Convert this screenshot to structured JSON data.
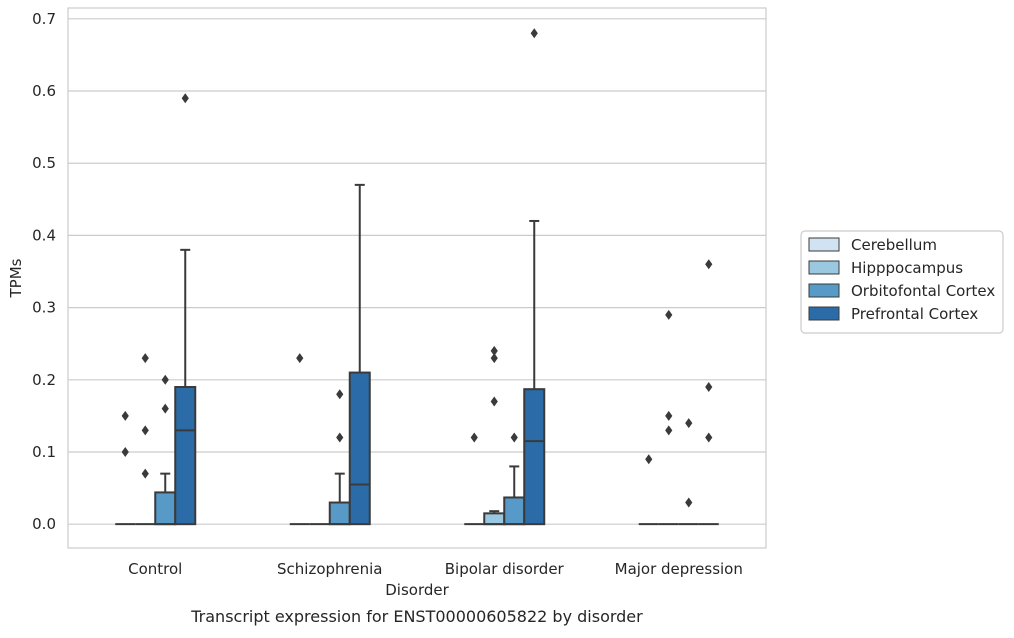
{
  "caption": "Transcript expression for ENST00000605822 by disorder",
  "chart_data": {
    "type": "box",
    "title": "",
    "xlabel": "Disorder",
    "ylabel": "TPMs",
    "ylim": [
      -0.033,
      0.715
    ],
    "yticks": [
      0.0,
      0.1,
      0.2,
      0.3,
      0.4,
      0.5,
      0.6,
      0.7
    ],
    "ytick_labels": [
      "0.0",
      "0.1",
      "0.2",
      "0.3",
      "0.4",
      "0.5",
      "0.6",
      "0.7"
    ],
    "grid": "horizontal",
    "legend_position": "right",
    "categories": [
      "Control",
      "Schizophrenia",
      "Bipolar disorder",
      "Major depression"
    ],
    "series": [
      {
        "name": "Cerebellum",
        "color": "#d1e2f2",
        "boxes": [
          {
            "q1": 0,
            "median": 0,
            "q3": 0,
            "whisker_low": 0,
            "whisker_high": 0,
            "outliers": [
              0.1,
              0.15
            ]
          },
          {
            "q1": 0,
            "median": 0,
            "q3": 0,
            "whisker_low": 0,
            "whisker_high": 0,
            "outliers": [
              0.23
            ]
          },
          {
            "q1": 0,
            "median": 0,
            "q3": 0,
            "whisker_low": 0,
            "whisker_high": 0,
            "outliers": [
              0.12
            ]
          },
          {
            "q1": 0,
            "median": 0,
            "q3": 0,
            "whisker_low": 0,
            "whisker_high": 0,
            "outliers": [
              0.09
            ]
          }
        ]
      },
      {
        "name": "Hipppocampus",
        "color": "#9ac8e0",
        "boxes": [
          {
            "q1": 0,
            "median": 0,
            "q3": 0,
            "whisker_low": 0,
            "whisker_high": 0,
            "outliers": [
              0.07,
              0.13,
              0.23
            ]
          },
          {
            "q1": 0,
            "median": 0,
            "q3": 0,
            "whisker_low": 0,
            "whisker_high": 0,
            "outliers": []
          },
          {
            "q1": 0,
            "median": 0,
            "q3": 0.015,
            "whisker_low": 0,
            "whisker_high": 0.018,
            "outliers": [
              0.17,
              0.23,
              0.24
            ]
          },
          {
            "q1": 0,
            "median": 0,
            "q3": 0,
            "whisker_low": 0,
            "whisker_high": 0,
            "outliers": [
              0.13,
              0.15,
              0.29
            ]
          }
        ]
      },
      {
        "name": "Orbitofontal Cortex",
        "color": "#5799c7",
        "boxes": [
          {
            "q1": 0,
            "median": 0,
            "q3": 0.044,
            "whisker_low": 0,
            "whisker_high": 0.07,
            "outliers": [
              0.16,
              0.2
            ]
          },
          {
            "q1": 0,
            "median": 0,
            "q3": 0.03,
            "whisker_low": 0,
            "whisker_high": 0.07,
            "outliers": [
              0.12,
              0.18
            ]
          },
          {
            "q1": 0,
            "median": 0,
            "q3": 0.037,
            "whisker_low": 0,
            "whisker_high": 0.08,
            "outliers": [
              0.12
            ]
          },
          {
            "q1": 0,
            "median": 0,
            "q3": 0,
            "whisker_low": 0,
            "whisker_high": 0,
            "outliers": [
              0.03,
              0.14
            ]
          }
        ]
      },
      {
        "name": "Prefrontal Cortex",
        "color": "#2b6ca8",
        "boxes": [
          {
            "q1": 0,
            "median": 0.13,
            "q3": 0.19,
            "whisker_low": 0,
            "whisker_high": 0.38,
            "outliers": [
              0.59
            ]
          },
          {
            "q1": 0,
            "median": 0.055,
            "q3": 0.21,
            "whisker_low": 0,
            "whisker_high": 0.47,
            "outliers": []
          },
          {
            "q1": 0,
            "median": 0.115,
            "q3": 0.187,
            "whisker_low": 0,
            "whisker_high": 0.42,
            "outliers": [
              0.68
            ]
          },
          {
            "q1": 0,
            "median": 0,
            "q3": 0,
            "whisker_low": 0,
            "whisker_high": 0,
            "outliers": [
              0.12,
              0.19,
              0.36
            ]
          }
        ]
      }
    ]
  }
}
